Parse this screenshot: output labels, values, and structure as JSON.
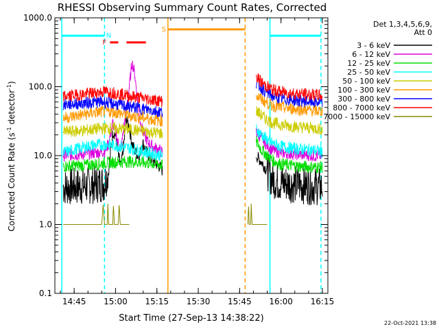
{
  "chart_data": {
    "type": "line",
    "title": "RHESSI Observing Summary Count Rates, Corrected",
    "xlabel": "Start Time (27-Sep-13 14:38:22)",
    "ylabel_prefix": "Corrected Count Rate (s",
    "ylabel_exp1": "-1",
    "ylabel_mid": " detector",
    "ylabel_exp2": "-1",
    "ylabel_suffix": ")",
    "y_scale": "log",
    "ylim": [
      0.1,
      1000.0
    ],
    "xlim": [
      "14:38",
      "16:17"
    ],
    "x_ticks": [
      "14:45",
      "15:00",
      "15:15",
      "15:30",
      "15:45",
      "16:00",
      "16:15"
    ],
    "y_ticks": [
      "0.1",
      "1.0",
      "10.0",
      "100.0",
      "1000.0"
    ],
    "legend_position": "top-right",
    "legend_header_line1": "Det 1,3,4,5,6,9,",
    "legend_header_line2": "Att 0",
    "date_stamp": "22-Oct-2021 13:38",
    "series": [
      {
        "name": "3 - 6 keV",
        "color": "#000000",
        "segments": [
          [
            [
              "14:41",
              3.5
            ],
            [
              "14:48",
              3.6
            ],
            [
              "14:53",
              3.8
            ],
            [
              "14:56",
              4.0
            ],
            [
              "14:57.5",
              6
            ],
            [
              "14:59",
              22
            ],
            [
              "15:00",
              20
            ],
            [
              "15:01",
              10
            ],
            [
              "15:02",
              7
            ],
            [
              "15:03",
              15
            ],
            [
              "15:04",
              35
            ],
            [
              "15:05",
              25
            ],
            [
              "15:06",
              15
            ],
            [
              "15:07",
              12
            ],
            [
              "15:08",
              10
            ],
            [
              "15:09",
              11
            ],
            [
              "15:10",
              15
            ],
            [
              "15:11",
              12
            ],
            [
              "15:12",
              10
            ],
            [
              "15:13",
              9
            ],
            [
              "15:14",
              8
            ],
            [
              "15:16",
              7
            ],
            [
              "15:17",
              6
            ]
          ],
          [
            [
              "15:51",
              10
            ],
            [
              "15:53",
              8
            ],
            [
              "15:55",
              6
            ],
            [
              "15:57",
              4.5
            ],
            [
              "16:00",
              4
            ],
            [
              "16:06",
              3.8
            ],
            [
              "16:12",
              3.6
            ],
            [
              "16:15",
              3.5
            ]
          ]
        ]
      },
      {
        "name": "6 - 12 keV",
        "color": "#dd00dd",
        "segments": [
          [
            [
              "14:41",
              10
            ],
            [
              "14:48",
              10.5
            ],
            [
              "14:53",
              11
            ],
            [
              "14:56",
              11.5
            ],
            [
              "14:57.5",
              15
            ],
            [
              "14:59",
              30
            ],
            [
              "15:00",
              22
            ],
            [
              "15:01",
              15
            ],
            [
              "15:02",
              12
            ],
            [
              "15:03",
              25
            ],
            [
              "15:04",
              50
            ],
            [
              "15:05",
              100
            ],
            [
              "15:06",
              230
            ],
            [
              "15:07",
              150
            ],
            [
              "15:08",
              60
            ],
            [
              "15:09",
              30
            ],
            [
              "15:10",
              22
            ],
            [
              "15:11",
              18
            ],
            [
              "15:12",
              15
            ],
            [
              "15:14",
              13
            ],
            [
              "15:16",
              12
            ],
            [
              "15:17",
              11
            ]
          ],
          [
            [
              "15:51",
              22
            ],
            [
              "15:53",
              18
            ],
            [
              "15:55",
              14
            ],
            [
              "15:57",
              12
            ],
            [
              "16:00",
              11
            ],
            [
              "16:06",
              10.5
            ],
            [
              "16:12",
              10
            ],
            [
              "16:15",
              10
            ]
          ]
        ]
      },
      {
        "name": "12 - 25 keV",
        "color": "#00dd00",
        "segments": [
          [
            [
              "14:41",
              7
            ],
            [
              "14:48",
              7.2
            ],
            [
              "14:53",
              7.5
            ],
            [
              "14:56",
              7.8
            ],
            [
              "15:00",
              8
            ],
            [
              "15:04",
              8.2
            ],
            [
              "15:08",
              8
            ],
            [
              "15:12",
              7.8
            ],
            [
              "15:15",
              7.5
            ],
            [
              "15:17",
              7.3
            ]
          ],
          [
            [
              "15:51",
              16
            ],
            [
              "15:53",
              12
            ],
            [
              "15:55",
              10
            ],
            [
              "15:57",
              8.5
            ],
            [
              "16:00",
              7.5
            ],
            [
              "16:06",
              7
            ],
            [
              "16:12",
              6.8
            ],
            [
              "16:15",
              6.8
            ]
          ]
        ]
      },
      {
        "name": "25 - 50 keV",
        "color": "#00ffff",
        "segments": [
          [
            [
              "14:41",
              11
            ],
            [
              "14:46",
              12.5
            ],
            [
              "14:51",
              14
            ],
            [
              "14:56",
              14.5
            ],
            [
              "15:00",
              14
            ],
            [
              "15:04",
              13
            ],
            [
              "15:08",
              12
            ],
            [
              "15:12",
              11
            ],
            [
              "15:15",
              10.5
            ],
            [
              "15:17",
              10
            ]
          ],
          [
            [
              "15:51",
              24
            ],
            [
              "15:53",
              20
            ],
            [
              "15:55",
              17
            ],
            [
              "15:57",
              15
            ],
            [
              "16:00",
              13.5
            ],
            [
              "16:06",
              12.5
            ],
            [
              "16:12",
              12
            ],
            [
              "16:15",
              11.5
            ]
          ]
        ]
      },
      {
        "name": "50 - 100 keV",
        "color": "#cccc00",
        "segments": [
          [
            [
              "14:41",
              22
            ],
            [
              "14:48",
              23
            ],
            [
              "14:54",
              24.5
            ],
            [
              "14:57",
              25
            ],
            [
              "15:01",
              24.5
            ],
            [
              "15:05",
              24
            ],
            [
              "15:09",
              23
            ],
            [
              "15:13",
              22
            ],
            [
              "15:17",
              21
            ]
          ],
          [
            [
              "15:51",
              45
            ],
            [
              "15:53",
              38
            ],
            [
              "15:55",
              33
            ],
            [
              "15:57",
              30
            ],
            [
              "16:00",
              28
            ],
            [
              "16:06",
              26
            ],
            [
              "16:12",
              25
            ],
            [
              "16:15",
              24
            ]
          ]
        ]
      },
      {
        "name": "100 - 300 keV",
        "color": "#ff9900",
        "segments": [
          [
            [
              "14:41",
              35
            ],
            [
              "14:46",
              38
            ],
            [
              "14:51",
              41
            ],
            [
              "14:56",
              44
            ],
            [
              "14:59",
              43
            ],
            [
              "15:03",
              40
            ],
            [
              "15:07",
              37
            ],
            [
              "15:11",
              35
            ],
            [
              "15:14",
              33
            ],
            [
              "15:17",
              32
            ]
          ],
          [
            [
              "15:51",
              75
            ],
            [
              "15:53",
              65
            ],
            [
              "15:55",
              58
            ],
            [
              "15:57",
              53
            ],
            [
              "16:00",
              50
            ],
            [
              "16:06",
              47
            ],
            [
              "16:12",
              45
            ],
            [
              "16:15",
              44
            ]
          ]
        ]
      },
      {
        "name": "300 - 800 keV",
        "color": "#0000ff",
        "segments": [
          [
            [
              "14:41",
              55
            ],
            [
              "14:46",
              57
            ],
            [
              "14:51",
              59
            ],
            [
              "14:56",
              60
            ],
            [
              "14:59",
              57
            ],
            [
              "15:03",
              53
            ],
            [
              "15:07",
              50
            ],
            [
              "15:11",
              47
            ],
            [
              "15:14",
              45
            ],
            [
              "15:17",
              43
            ]
          ],
          [
            [
              "15:51",
              115
            ],
            [
              "15:53",
              95
            ],
            [
              "15:55",
              82
            ],
            [
              "15:57",
              73
            ],
            [
              "16:00",
              67
            ],
            [
              "16:06",
              63
            ],
            [
              "16:12",
              60
            ],
            [
              "16:15",
              58
            ]
          ]
        ]
      },
      {
        "name": "800 - 7000 keV",
        "color": "#ff0000",
        "segments": [
          [
            [
              "14:41",
              72
            ],
            [
              "14:46",
              76
            ],
            [
              "14:51",
              80
            ],
            [
              "14:56",
              85
            ],
            [
              "14:59",
              82
            ],
            [
              "15:03",
              76
            ],
            [
              "15:07",
              71
            ],
            [
              "15:11",
              67
            ],
            [
              "15:14",
              64
            ],
            [
              "15:17",
              62
            ]
          ],
          [
            [
              "15:51",
              140
            ],
            [
              "15:53",
              115
            ],
            [
              "15:55",
              100
            ],
            [
              "15:57",
              90
            ],
            [
              "16:00",
              84
            ],
            [
              "16:06",
              79
            ],
            [
              "16:12",
              76
            ],
            [
              "16:15",
              74
            ]
          ]
        ]
      },
      {
        "name": "7000 - 15000 keV",
        "color": "#888800",
        "segments": [
          [
            [
              "14:41",
              1.0
            ],
            [
              "14:55",
              1.0
            ],
            [
              "14:55.5",
              2.0
            ],
            [
              "14:56",
              1.0
            ],
            [
              "14:57",
              1.0
            ],
            [
              "14:57.2",
              2.0
            ],
            [
              "14:57.5",
              1.0
            ],
            [
              "14:59",
              1.0
            ],
            [
              "14:59.2",
              2.0
            ],
            [
              "14:59.6",
              1.0
            ],
            [
              "15:01",
              1.0
            ],
            [
              "15:01.3",
              2.0
            ],
            [
              "15:01.7",
              1.0
            ],
            [
              "15:05",
              1.0
            ]
          ],
          [
            [
              "15:48",
              1.0
            ],
            [
              "15:48.2",
              2.0
            ],
            [
              "15:48.5",
              1.0
            ],
            [
              "15:49",
              1.0
            ],
            [
              "15:49.2",
              2.0
            ],
            [
              "15:49.5",
              1.0
            ],
            [
              "15:55",
              1.0
            ]
          ]
        ]
      }
    ],
    "intervals": [
      {
        "label": "",
        "color": "#00ffff",
        "y": 550,
        "start": "14:40.5",
        "end": "14:56",
        "label_x": ""
      },
      {
        "label": "N",
        "color": "#00ffff",
        "y": 550,
        "start": "",
        "end": "",
        "label_x": "14:57.5"
      },
      {
        "label": "",
        "color": "#00ffff",
        "y": 550,
        "start": "15:56",
        "end": "16:14.5",
        "label_x": ""
      },
      {
        "label": "F",
        "color": "#ff0000",
        "y": 440,
        "start": "14:58",
        "end": "15:01",
        "label_x": "14:56"
      },
      {
        "label": "",
        "color": "#ff0000",
        "y": 440,
        "start": "15:04",
        "end": "15:11",
        "label_x": ""
      },
      {
        "label": "S",
        "color": "#ff9900",
        "y": 680,
        "start": "15:19",
        "end": "15:47",
        "label_x": "15:17.5"
      }
    ],
    "vlines": [
      {
        "t": "14:40.5",
        "color": "#00ffff",
        "style": "solid"
      },
      {
        "t": "14:56",
        "color": "#00ffff",
        "style": "dashed"
      },
      {
        "t": "15:19",
        "color": "#ff9900",
        "style": "solid"
      },
      {
        "t": "15:47",
        "color": "#ff9900",
        "style": "dashed"
      },
      {
        "t": "15:56",
        "color": "#00ffff",
        "style": "solid"
      },
      {
        "t": "16:14.5",
        "color": "#00ffff",
        "style": "dashed"
      }
    ]
  }
}
